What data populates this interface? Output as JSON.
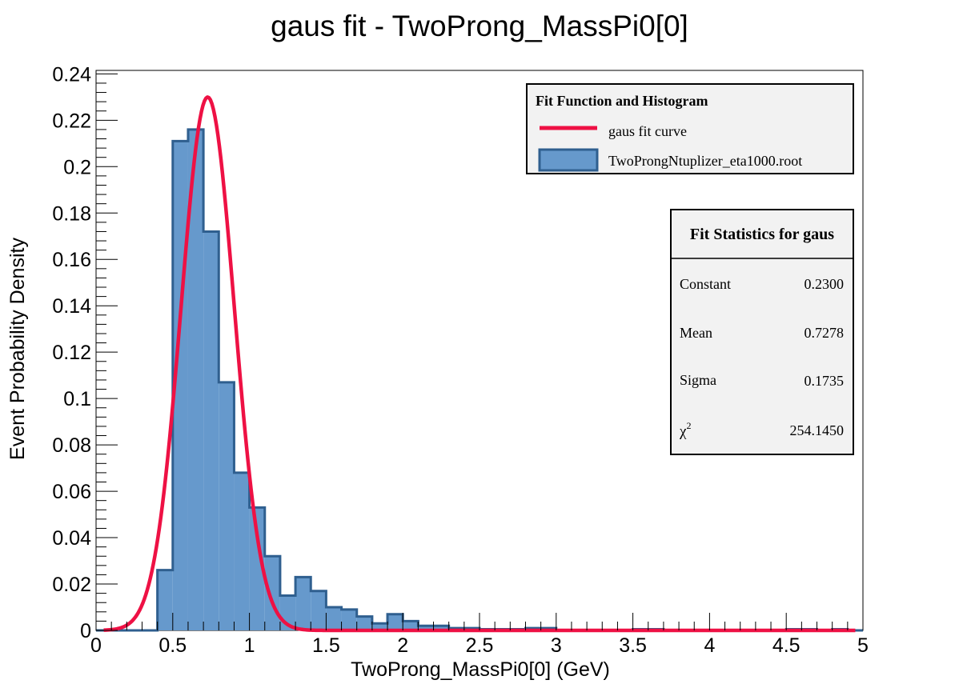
{
  "chart_data": {
    "type": "bar",
    "title": "gaus fit - TwoProng_MassPi0[0]",
    "xlabel": "TwoProng_MassPi0[0] (GeV)",
    "ylabel": "Event Probability Density",
    "xlim": [
      0,
      5
    ],
    "ylim": [
      0,
      0.2415
    ],
    "x_ticks": [
      "0",
      "0.5",
      "1",
      "1.5",
      "2",
      "2.5",
      "3",
      "3.5",
      "4",
      "4.5",
      "5"
    ],
    "y_ticks": [
      "0",
      "0.02",
      "0.04",
      "0.06",
      "0.08",
      "0.1",
      "0.12",
      "0.14",
      "0.16",
      "0.18",
      "0.2",
      "0.22",
      "0.24"
    ],
    "grid": false,
    "histogram": {
      "name": "TwoProngNtuplizer_eta1000.root",
      "bin_width": 0.1,
      "bin_edges_start": 0.0,
      "values": [
        0,
        0,
        0,
        0,
        0.026,
        0.211,
        0.216,
        0.172,
        0.107,
        0.068,
        0.053,
        0.032,
        0.015,
        0.023,
        0.017,
        0.01,
        0.009,
        0.006,
        0.003,
        0.007,
        0.004,
        0.002,
        0.002,
        0.001,
        0.001,
        0.0005,
        0.0005,
        0.0005,
        0.001,
        0.001,
        0,
        0,
        0,
        0,
        0,
        0.0005,
        0.0005,
        0,
        0,
        0,
        0,
        0,
        0,
        0,
        0,
        0.0005,
        0.0005,
        0,
        0.0005,
        0
      ],
      "fill_color": "#6699cc",
      "line_color": "#2f5f8f"
    },
    "fit_curve": {
      "name": "gaus fit curve",
      "function": "gaus",
      "constant": 0.23,
      "mean": 0.7278,
      "sigma": 0.1735,
      "x_range": [
        0.05,
        4.95
      ],
      "color": "#ee1144"
    },
    "legend": {
      "title": "Fit Function and Histogram",
      "placement": "top-right",
      "entries": [
        {
          "label": "gaus fit curve",
          "style": "line"
        },
        {
          "label": "TwoProngNtuplizer_eta1000.root",
          "style": "fill"
        }
      ]
    },
    "stats_box": {
      "title": "Fit Statistics for gaus",
      "placement": "right",
      "rows": [
        {
          "label": "Constant",
          "value": "0.2300"
        },
        {
          "label": "Mean",
          "value": "0.7278"
        },
        {
          "label": "Sigma",
          "value": "0.1735"
        },
        {
          "label": "χ",
          "sup": "2",
          "value": "254.1450"
        }
      ]
    }
  }
}
